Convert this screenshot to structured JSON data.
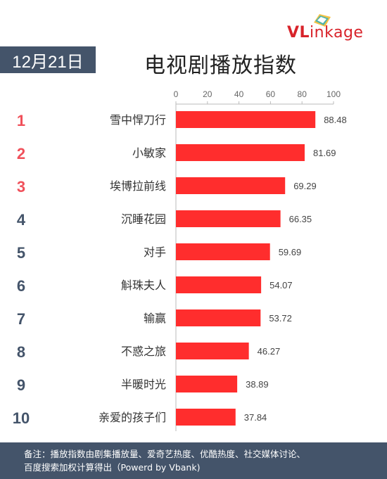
{
  "logo": {
    "text_v": "VL",
    "text_rest": "inkage"
  },
  "header": {
    "date": "12月21日",
    "title": "电视剧播放指数"
  },
  "colors": {
    "bar": "#ff2d2d",
    "rank_top": "#f0505a",
    "rank_other": "#44546a",
    "footer_bg": "#44546a"
  },
  "chart_data": {
    "type": "bar",
    "orientation": "horizontal",
    "categories": [
      "雪中悍刀行",
      "小敏家",
      "埃博拉前线",
      "沉睡花园",
      "对手",
      "斛珠夫人",
      "输赢",
      "不惑之旅",
      "半暖时光",
      "亲爱的孩子们"
    ],
    "ranks": [
      "1",
      "2",
      "3",
      "4",
      "5",
      "6",
      "7",
      "8",
      "9",
      "10"
    ],
    "values": [
      88.48,
      81.69,
      69.29,
      66.35,
      59.69,
      54.07,
      53.72,
      46.27,
      38.89,
      37.84
    ],
    "value_labels": [
      "88.48",
      "81.69",
      "69.29",
      "66.35",
      "59.69",
      "54.07",
      "53.72",
      "46.27",
      "38.89",
      "37.84"
    ],
    "xlim": [
      0,
      100
    ],
    "xticks": [
      0,
      20,
      40,
      60,
      80,
      100
    ],
    "xtick_labels": [
      "0",
      "20",
      "40",
      "60",
      "80",
      "100"
    ],
    "axis_position": "top",
    "grid": false
  },
  "footer": {
    "line1": "备注：播放指数由剧集播放量、爱奇艺热度、优酷热度、社交媒体讨论、",
    "line2": "百度搜索加权计算得出（Powerd by Vbank)"
  }
}
